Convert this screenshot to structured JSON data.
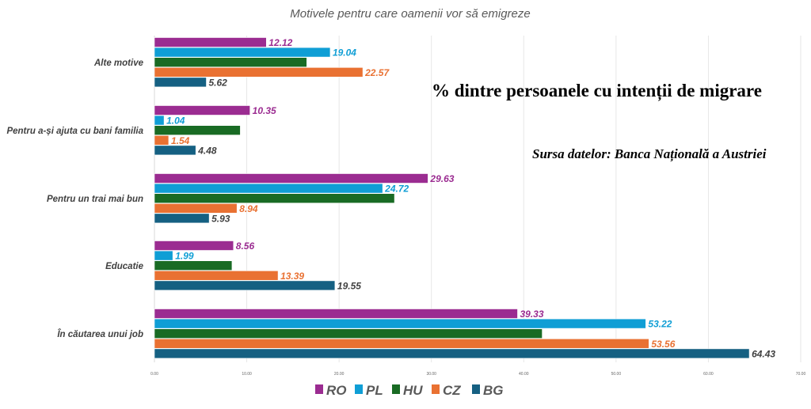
{
  "chart_data": {
    "type": "bar",
    "orientation": "horizontal",
    "title": "Motivele pentru care oamenii vor să emigreze",
    "categories": [
      "Alte motive",
      "Pentru a-și ajuta cu bani familia",
      "Pentru un trai mai bun",
      "Educatie",
      "În căutarea unui job"
    ],
    "series": [
      {
        "name": "RO",
        "color": "#9b2c91",
        "values": [
          12.12,
          10.35,
          29.63,
          8.56,
          39.33
        ],
        "labeled": true
      },
      {
        "name": "PL",
        "color": "#0f9ed5",
        "values": [
          19.04,
          1.04,
          24.72,
          1.99,
          53.22
        ],
        "labeled": true
      },
      {
        "name": "HU",
        "color": "#196b24",
        "values": [
          16.5,
          9.3,
          26.0,
          8.4,
          42.0
        ],
        "labeled": false
      },
      {
        "name": "CZ",
        "color": "#e97132",
        "values": [
          22.57,
          1.54,
          8.94,
          13.39,
          53.56
        ],
        "labeled": true
      },
      {
        "name": "BG",
        "color": "#156082",
        "values": [
          5.62,
          4.48,
          5.93,
          19.55,
          64.43
        ],
        "labeled": true
      }
    ],
    "label_colors": {
      "RO": "#9b2c91",
      "PL": "#0f9ed5",
      "CZ": "#e97132",
      "BG": "#404040"
    },
    "xlim": [
      0,
      70
    ],
    "xticks": [
      "0.00",
      "10.00",
      "20.00",
      "30.00",
      "40.00",
      "50.00",
      "60.00",
      "70.00"
    ],
    "grid": true,
    "legend": "bottom"
  },
  "annotations": {
    "unit_note": "% dintre persoanele cu intenții de migrare",
    "source": "Sursa datelor: Banca Națională a Austriei"
  }
}
